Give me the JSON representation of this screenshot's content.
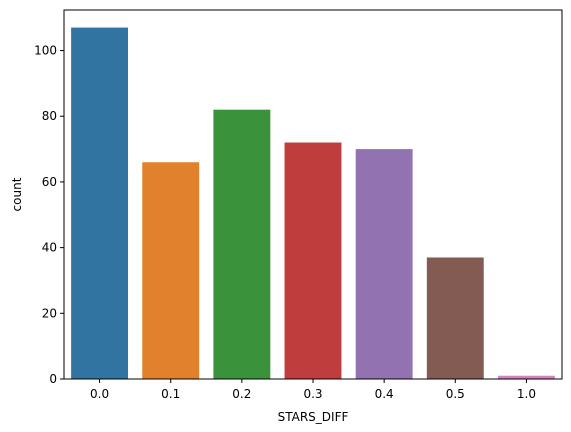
{
  "chart_data": {
    "type": "bar",
    "categories": [
      "0.0",
      "0.1",
      "0.2",
      "0.3",
      "0.4",
      "0.5",
      "1.0"
    ],
    "values": [
      107,
      66,
      82,
      72,
      70,
      37,
      1
    ],
    "colors": [
      "#3274a1",
      "#e1812c",
      "#3a923a",
      "#c03d3e",
      "#9372b2",
      "#845b53",
      "#d684bd"
    ],
    "xlabel": "STARS_DIFF",
    "ylabel": "count",
    "ylim": [
      0,
      112.35
    ],
    "yticks": [
      0,
      20,
      40,
      60,
      80,
      100
    ],
    "grid": false
  }
}
